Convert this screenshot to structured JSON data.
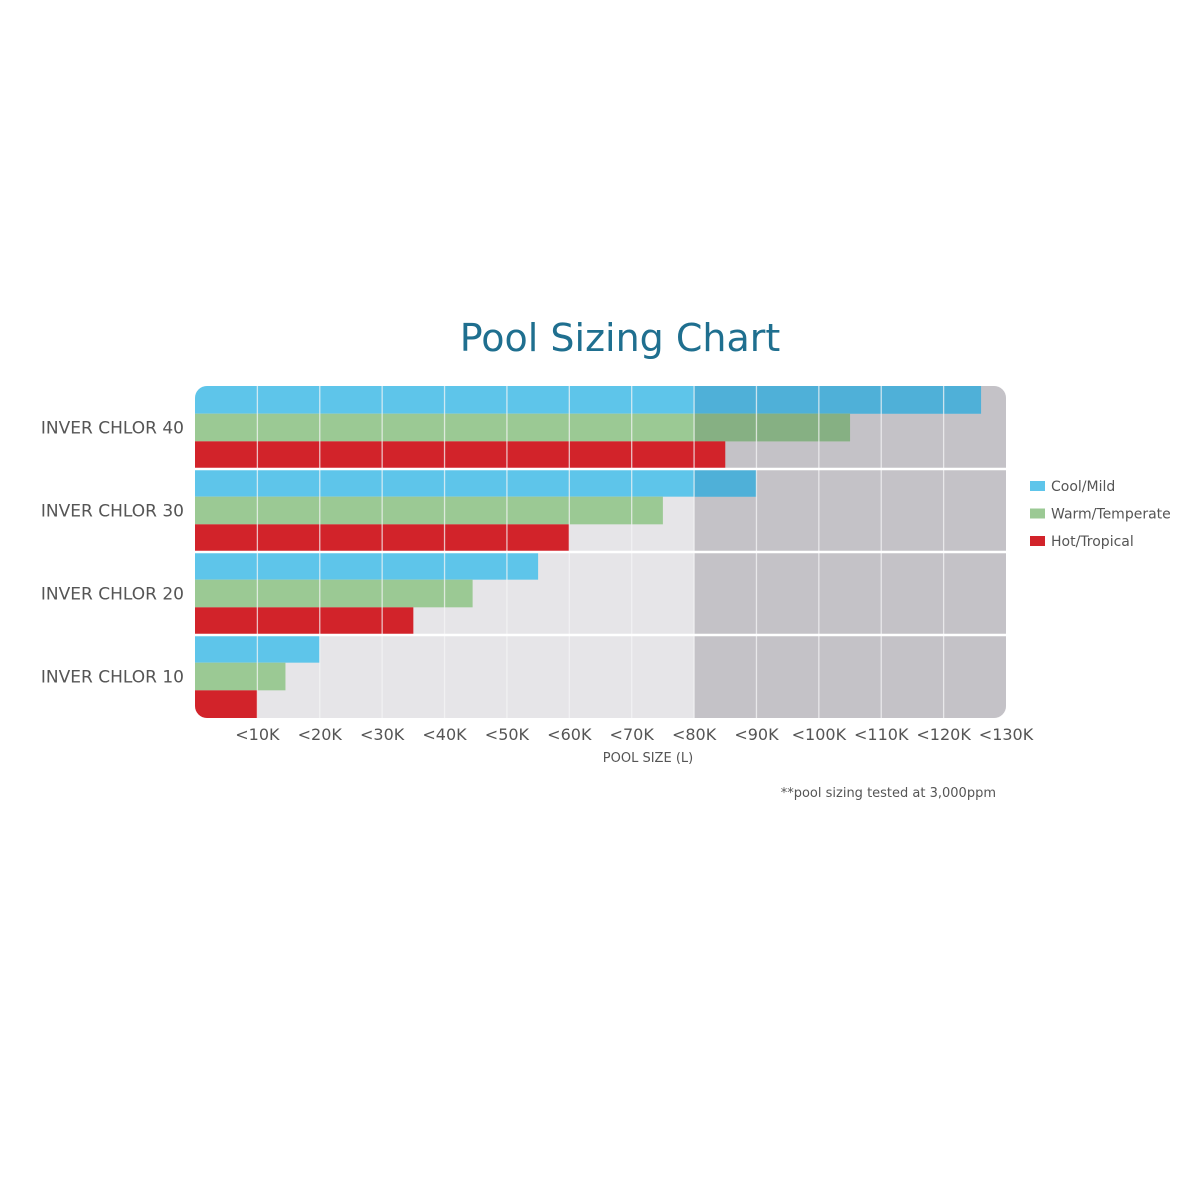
{
  "chart_data": {
    "type": "bar",
    "orientation": "horizontal",
    "title": "Pool Sizing Chart",
    "xlabel": "POOL SIZE (L)",
    "ylabel": "",
    "footnote": "**pool sizing tested at 3,000ppm",
    "categories": [
      "INVER CHLOR 40",
      "INVER CHLOR 30",
      "INVER CHLOR 20",
      "INVER CHLOR 10"
    ],
    "tick_labels": [
      "<10K",
      "<20K",
      "<30K",
      "<40K",
      "<50K",
      "<60K",
      "<70K",
      "<80K",
      "<90K",
      "<100K",
      "<110K",
      "<120K",
      "<130K"
    ],
    "xlim": [
      0,
      130000
    ],
    "shaded_region_start": 80000,
    "legend_position": "right",
    "series": [
      {
        "name": "Cool/Mild",
        "color": "#5ec5ea",
        "overlap_color": "#4fb0d8",
        "values": [
          126000,
          90000,
          55000,
          20000
        ]
      },
      {
        "name": "Warm/Temperate",
        "color": "#9bc994",
        "overlap_color": "#86b083",
        "values": [
          105000,
          75000,
          44500,
          14500
        ]
      },
      {
        "name": "Hot/Tropical",
        "color": "#d2232a",
        "overlap_color": "#d2232a",
        "values": [
          85000,
          60000,
          35000,
          10000
        ]
      }
    ],
    "colors": {
      "light_background": "#e6e5e8",
      "dark_background": "#c4c2c7",
      "grid": "#f4f4f6"
    }
  }
}
